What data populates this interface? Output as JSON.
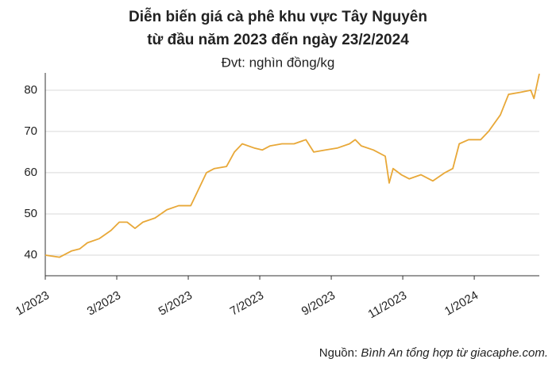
{
  "chart_data": {
    "type": "line",
    "title": [
      "Diễn biến giá cà phê khu vực Tây Nguyên",
      "từ đầu năm 2023 đến ngày 23/2/2024"
    ],
    "subtitle": "Đvt: nghìn đồng/kg",
    "source": "Nguồn: ",
    "source_italic": "Bình An tổng hợp từ giacaphe.com.",
    "x": [
      0,
      0.4,
      0.73,
      0.96,
      1.18,
      1.51,
      1.84,
      2.07,
      2.29,
      2.51,
      2.73,
      3.07,
      3.4,
      3.73,
      4.07,
      4.29,
      4.51,
      4.73,
      5.07,
      5.29,
      5.51,
      5.84,
      6.07,
      6.29,
      6.62,
      6.96,
      7.29,
      7.51,
      7.84,
      8.18,
      8.51,
      8.67,
      8.84,
      9.18,
      9.51,
      9.62,
      9.73,
      9.96,
      10.18,
      10.51,
      10.84,
      11.18,
      11.4,
      11.58,
      11.84,
      12.18,
      12.4,
      12.73,
      12.96,
      13.29,
      13.58,
      13.67,
      13.82
    ],
    "series": [
      {
        "name": "Giá cà phê",
        "color": "#e8a838",
        "values": [
          40,
          39.5,
          41,
          41.5,
          43,
          44,
          46,
          48,
          48,
          46.5,
          48,
          49,
          51,
          52,
          52,
          56,
          60,
          61,
          61.5,
          65,
          67,
          66,
          65.5,
          66.5,
          67,
          67,
          68,
          65,
          65.5,
          66,
          67,
          68,
          66.5,
          65.5,
          64,
          57.5,
          61,
          59.5,
          58.5,
          59.5,
          58,
          60,
          61,
          67,
          68,
          68,
          70,
          74,
          79,
          79.5,
          80,
          78,
          84
        ]
      }
    ],
    "xlim": [
      0,
      13.82
    ],
    "xticks": [
      {
        "value": 0,
        "label": "1/2023"
      },
      {
        "value": 2,
        "label": "3/2023"
      },
      {
        "value": 4,
        "label": "5/2023"
      },
      {
        "value": 6,
        "label": "7/2023"
      },
      {
        "value": 8,
        "label": "9/2023"
      },
      {
        "value": 10,
        "label": "11/2023"
      },
      {
        "value": 12,
        "label": "1/2024"
      }
    ],
    "ylim": [
      35,
      84.2
    ],
    "yticks": [
      40,
      50,
      60,
      70,
      80
    ],
    "grid": true
  }
}
